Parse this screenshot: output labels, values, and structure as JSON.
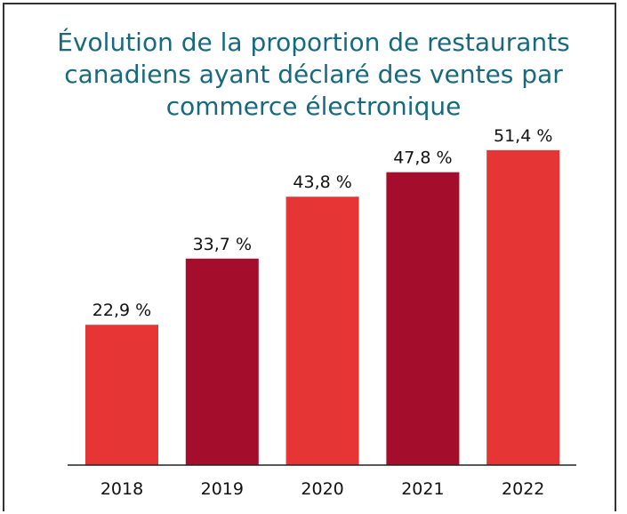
{
  "chart_data": {
    "type": "bar",
    "title": "Évolution de la proportion de restaurants canadiens ayant déclaré des ventes par commerce électronique",
    "categories": [
      "2018",
      "2019",
      "2020",
      "2021",
      "2022"
    ],
    "values": [
      22.9,
      33.7,
      43.8,
      47.8,
      51.4
    ],
    "value_labels": [
      "22,9 %",
      "33,7 %",
      "43,8 %",
      "47,8 %",
      "51,4 %"
    ],
    "colors": [
      "#e53535",
      "#a50d2d",
      "#e53535",
      "#a50d2d",
      "#e53535"
    ]
  }
}
